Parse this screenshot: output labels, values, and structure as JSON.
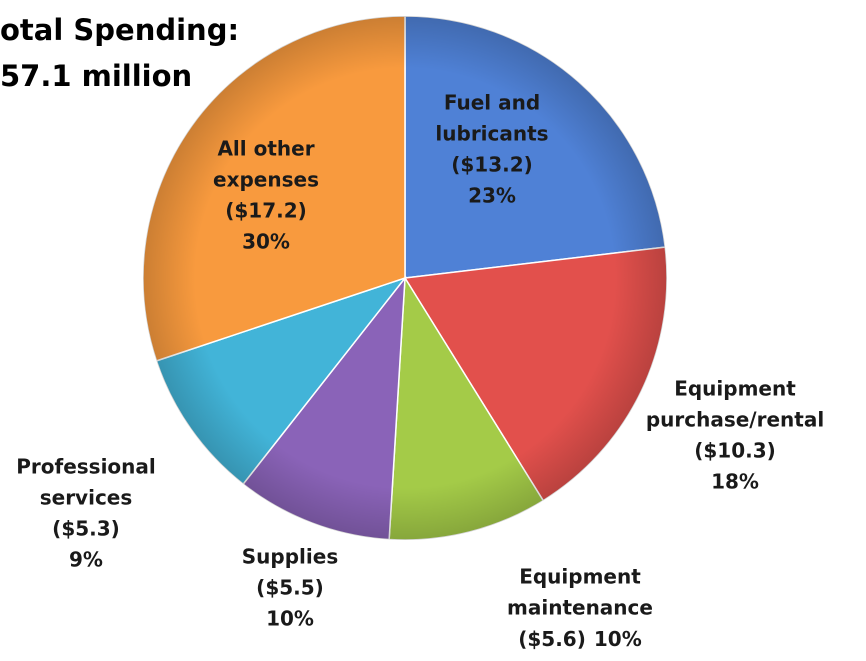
{
  "chart_data": {
    "type": "pie",
    "title": [
      "otal Spending:",
      "57.1 million"
    ],
    "categories": [
      [
        "Fuel and",
        "lubricants"
      ],
      [
        "Equipment",
        "purchase/rental"
      ],
      [
        "Equipment",
        "maintenance"
      ],
      [
        "Supplies"
      ],
      [
        "Professional",
        "services"
      ],
      [
        "All other",
        "expenses"
      ]
    ],
    "values": [
      13.2,
      10.3,
      5.6,
      5.5,
      5.3,
      17.2
    ],
    "value_labels": [
      "($13.2)",
      "($10.3)",
      "($5.6)",
      "($5.5)",
      "($5.3)",
      "($17.2)"
    ],
    "percents": [
      23,
      18,
      10,
      10,
      9,
      30
    ],
    "percent_labels": [
      "23%",
      "18%",
      "10%",
      "10%",
      "9%",
      "30%"
    ],
    "colors": [
      "#4f81d6",
      "#e2504c",
      "#a4cb48",
      "#8a63b8",
      "#42b4d8",
      "#f89a3e"
    ]
  }
}
